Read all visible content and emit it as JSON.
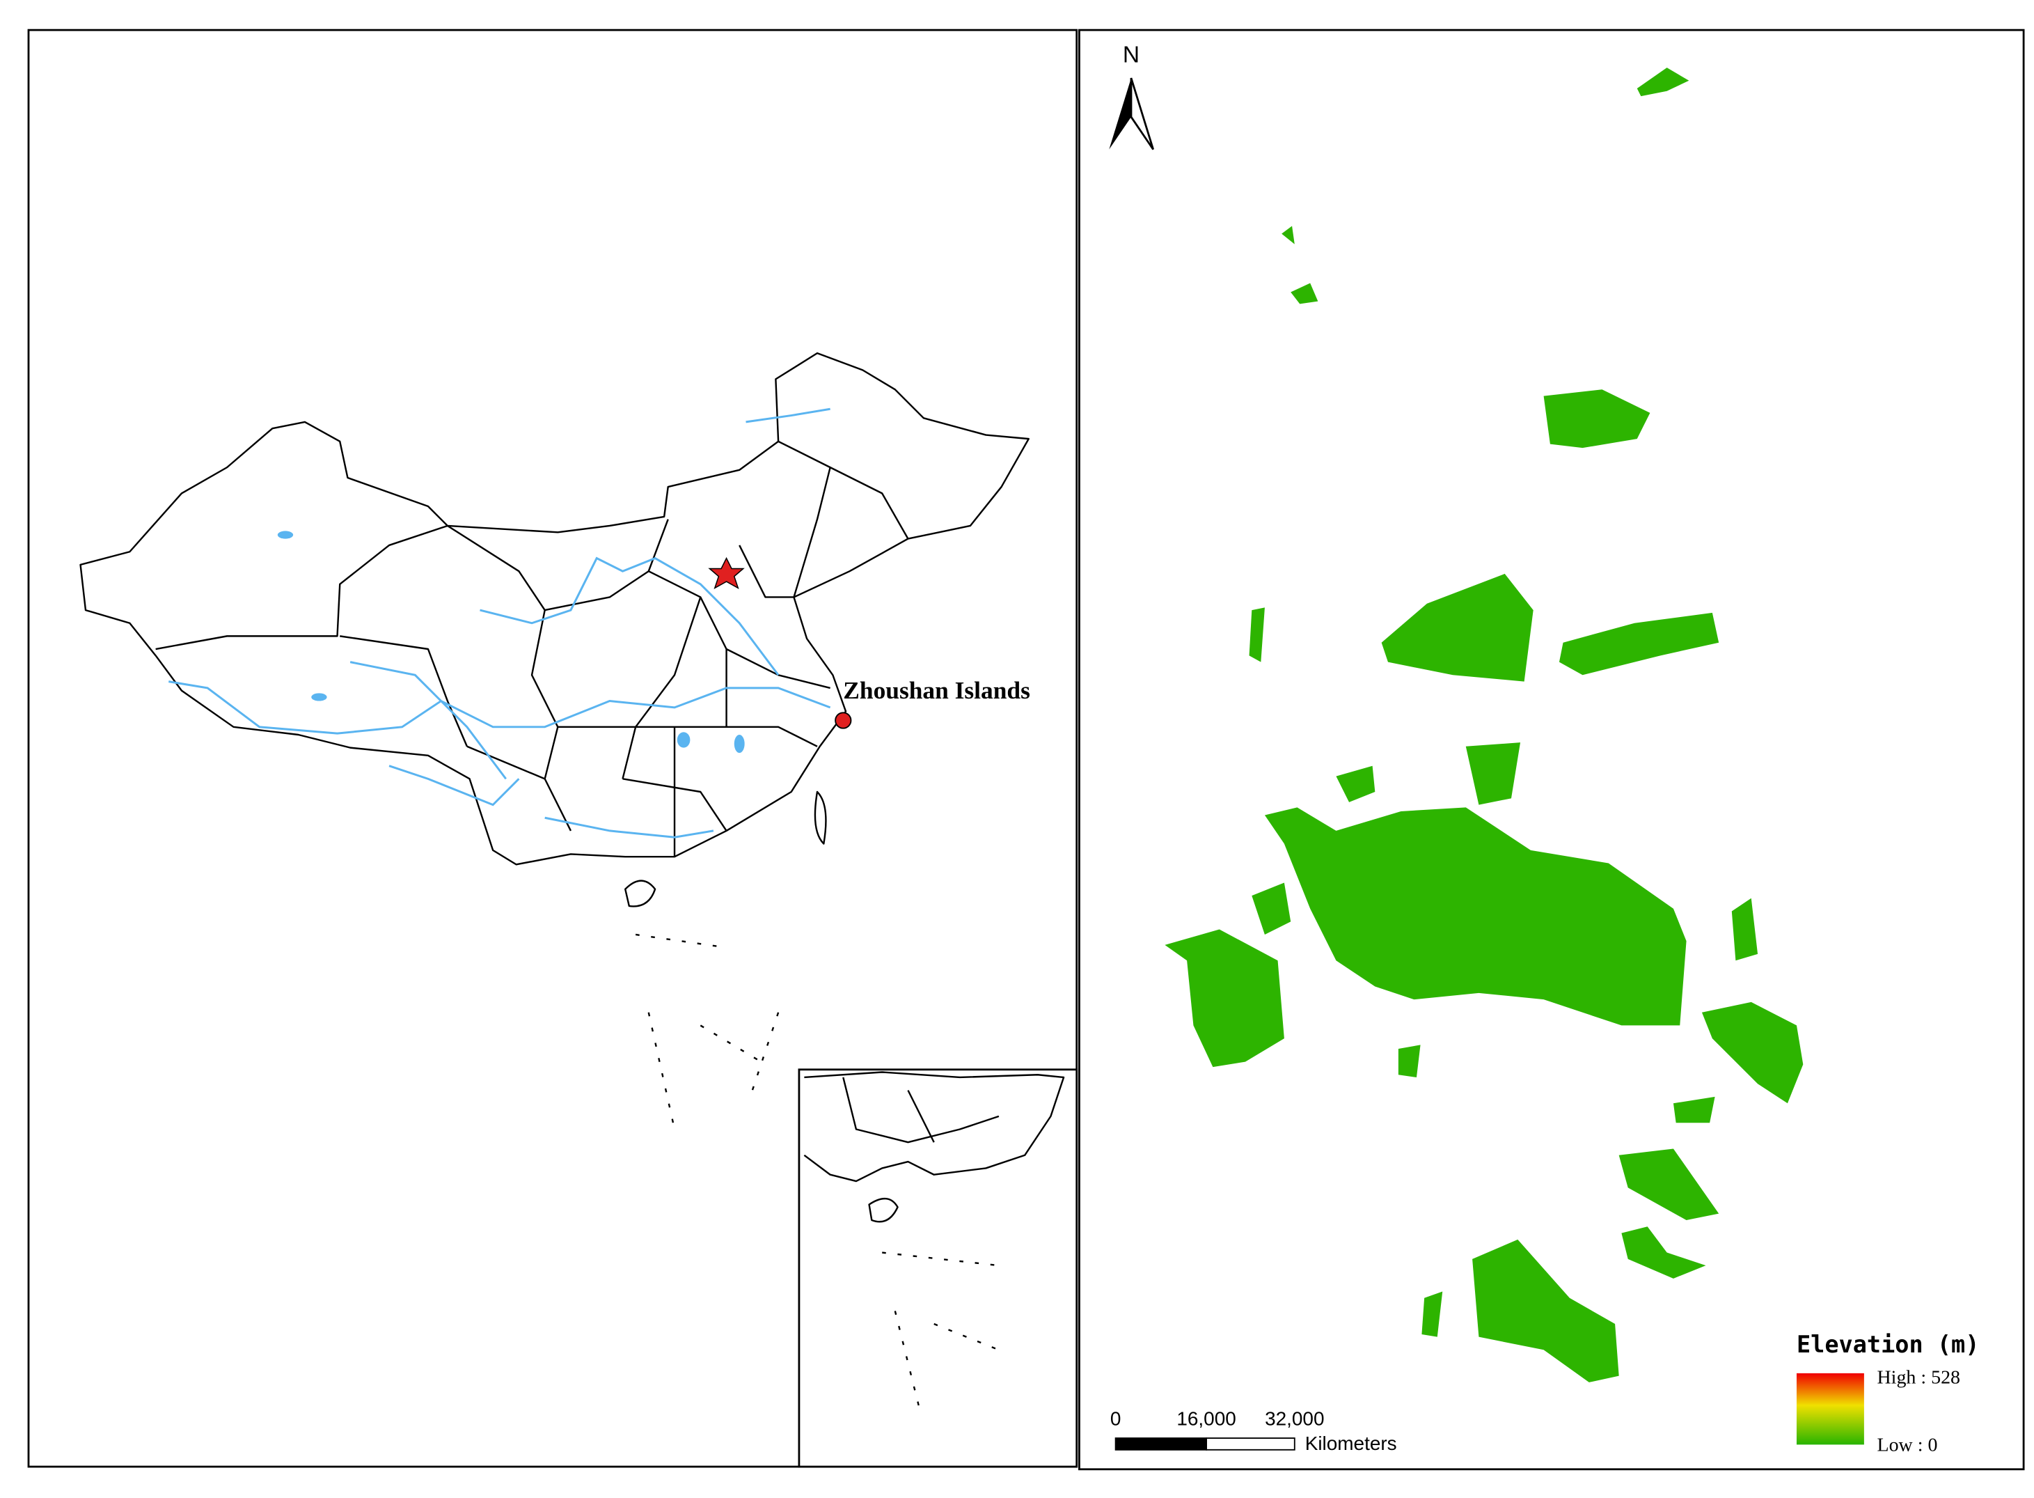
{
  "left_map": {
    "label": "Zhoushan Islands"
  },
  "right_map": {
    "north_label": "N",
    "legend": {
      "title": "Elevation (m)",
      "high": "High : 528",
      "low": "Low : 0"
    },
    "scale_bar": {
      "ticks": [
        "0",
        "16,000",
        "32,000"
      ],
      "unit": "Kilometers"
    }
  }
}
